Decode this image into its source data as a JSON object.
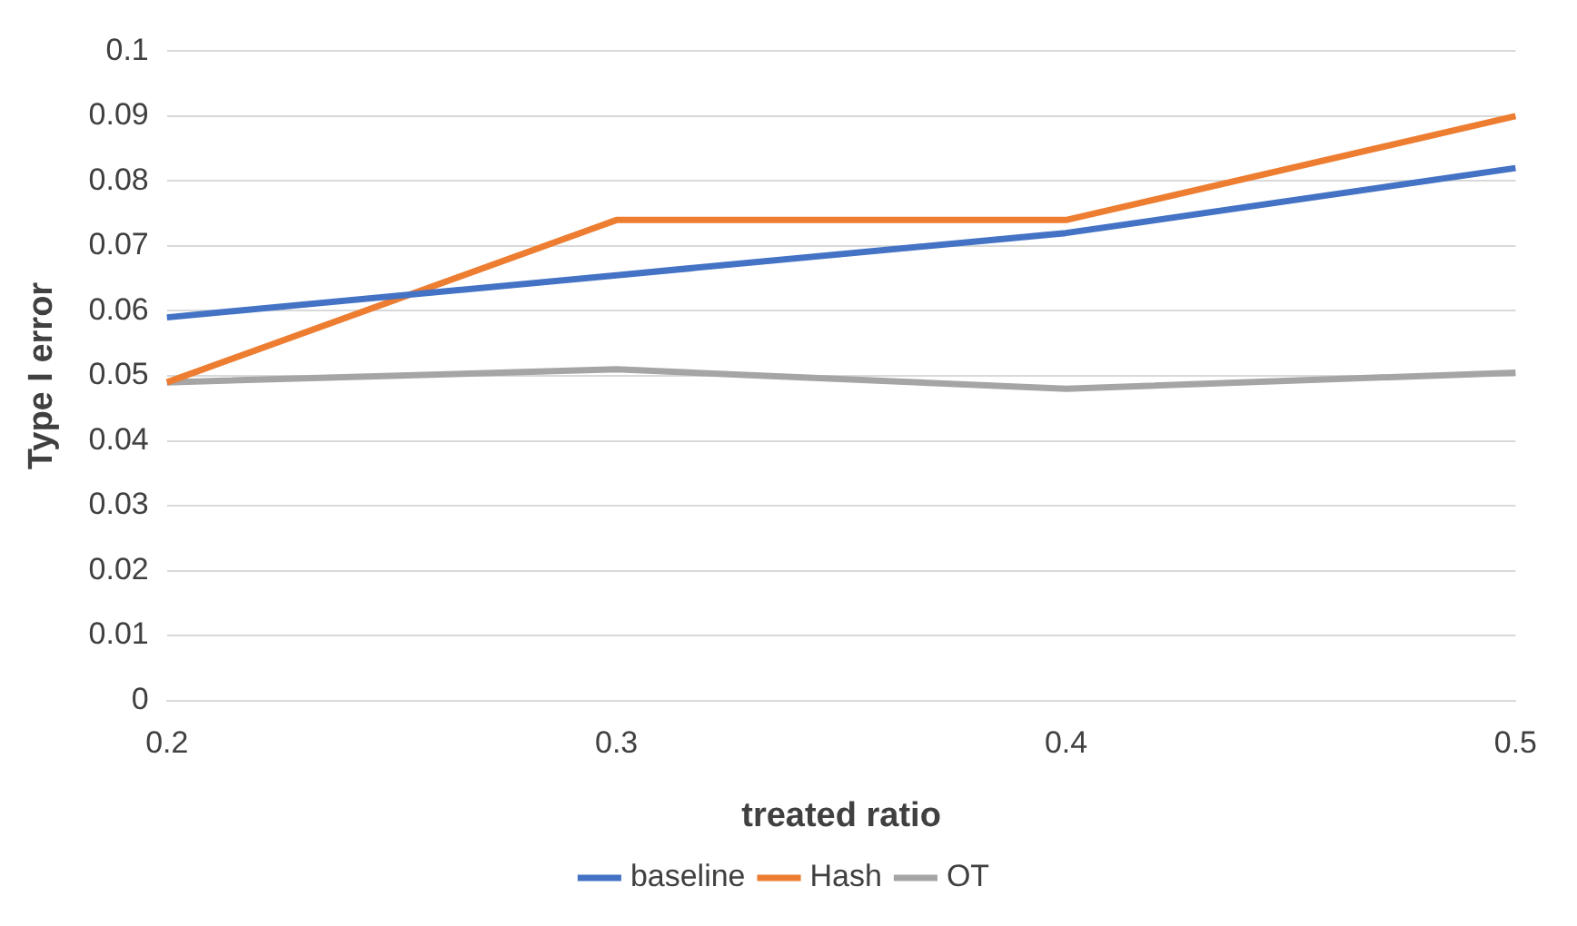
{
  "chart_data": {
    "type": "line",
    "xlabel": "treated ratio",
    "ylabel": "Type I error",
    "categories": [
      "0.2",
      "0.3",
      "0.4",
      "0.5"
    ],
    "series": [
      {
        "name": "baseline",
        "color": "#4472c4",
        "values": [
          0.059,
          0.0655,
          0.072,
          0.082
        ]
      },
      {
        "name": "Hash",
        "color": "#ed7d31",
        "values": [
          0.049,
          0.074,
          0.074,
          0.09
        ]
      },
      {
        "name": "OT",
        "color": "#a5a5a5",
        "values": [
          0.049,
          0.051,
          0.048,
          0.0505
        ]
      }
    ],
    "ylim": [
      0,
      0.1
    ],
    "yticks": [
      0,
      0.01,
      0.02,
      0.03,
      0.04,
      0.05,
      0.06,
      0.07,
      0.08,
      0.09,
      0.1
    ],
    "grid": "y",
    "legend": "bottom",
    "marker": "none",
    "line_style": "solid"
  }
}
